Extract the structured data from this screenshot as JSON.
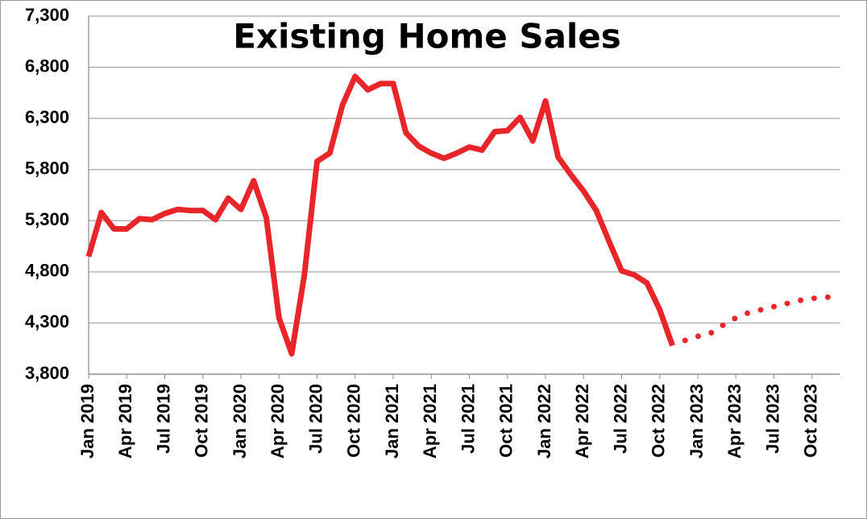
{
  "chart_data": {
    "type": "line",
    "title": "Existing Home Sales",
    "categories": [
      "Jan 2019",
      null,
      null,
      "Apr 2019",
      null,
      null,
      "Jul 2019",
      null,
      null,
      "Oct 2019",
      null,
      null,
      "Jan 2020",
      null,
      null,
      "Apr 2020",
      null,
      null,
      "Jul 2020",
      null,
      null,
      "Oct 2020",
      null,
      null,
      "Jan 2021",
      null,
      null,
      "Apr 2021",
      null,
      null,
      "Jul 2021",
      null,
      null,
      "Oct 2021",
      null,
      null,
      "Jan 2022",
      null,
      null,
      "Apr 2022",
      null,
      null,
      "Jul 2022",
      null,
      null,
      "Oct 2022",
      null,
      null,
      "Jan 2023",
      null,
      null,
      "Apr 2023",
      null,
      null,
      "Jul 2023",
      null,
      null,
      "Oct 2023",
      null,
      null
    ],
    "series": [
      {
        "color": "#e8262a",
        "style": "solid",
        "values": [
          4950,
          5380,
          5220,
          5220,
          5320,
          5310,
          5370,
          5410,
          5400,
          5400,
          5310,
          5520,
          5410,
          5690,
          5330,
          4350,
          4000,
          4770,
          5880,
          5960,
          6430,
          6710,
          6580,
          6640,
          6640,
          6160,
          6030,
          5960,
          5910,
          5960,
          6020,
          5990,
          6170,
          6180,
          6310,
          6080,
          6470,
          5920,
          5750,
          5590,
          5400,
          5100,
          4810,
          4770,
          4690,
          4430,
          4080,
          null,
          null,
          null,
          null,
          null,
          null,
          null,
          null,
          null,
          null,
          null,
          null,
          null
        ]
      },
      {
        "color": "#e8262a",
        "style": "dotted",
        "values": [
          null,
          null,
          null,
          null,
          null,
          null,
          null,
          null,
          null,
          null,
          null,
          null,
          null,
          null,
          null,
          null,
          null,
          null,
          null,
          null,
          null,
          null,
          null,
          null,
          null,
          null,
          null,
          null,
          null,
          null,
          null,
          null,
          null,
          null,
          null,
          null,
          null,
          null,
          null,
          null,
          null,
          null,
          null,
          null,
          null,
          null,
          null,
          4130,
          4170,
          4200,
          4280,
          4350,
          4400,
          4430,
          4460,
          4490,
          4520,
          4540,
          4550,
          4560
        ]
      }
    ],
    "ylim": [
      3800,
      7300
    ],
    "yticks": [
      {
        "value": 3800,
        "label": "3,800"
      },
      {
        "value": 4300,
        "label": "4,300"
      },
      {
        "value": 4800,
        "label": "4,800"
      },
      {
        "value": 5300,
        "label": "5,300"
      },
      {
        "value": 5800,
        "label": "5,800"
      },
      {
        "value": 6300,
        "label": "6,300"
      },
      {
        "value": 6800,
        "label": "6,800"
      },
      {
        "value": 7300,
        "label": "7,300"
      }
    ],
    "grid": true
  }
}
